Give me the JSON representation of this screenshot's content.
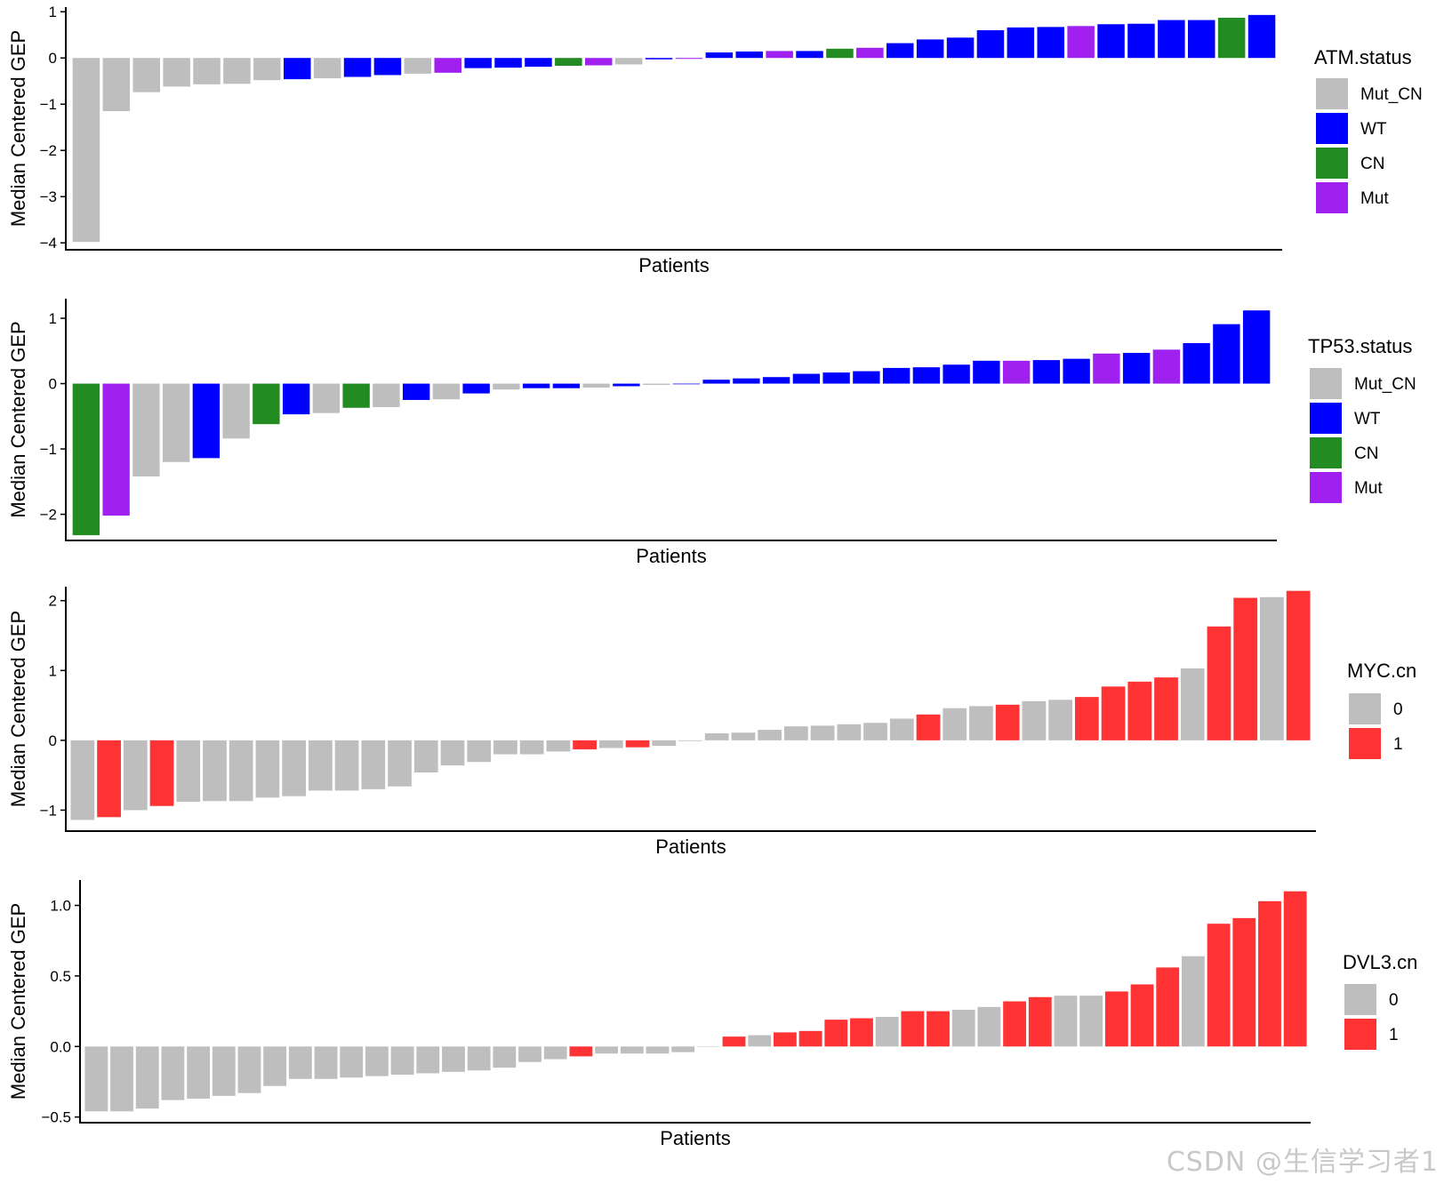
{
  "watermark": "CSDN @生信学习者1",
  "chart_data": [
    {
      "type": "bar",
      "title": "",
      "xlabel": "Patients",
      "ylabel": "Median Centered GEP",
      "ylim": [
        -4.15,
        1.1
      ],
      "yticks": [
        1,
        0,
        -1,
        -2,
        -3,
        -4
      ],
      "ytick_labels": [
        "1",
        "0",
        "−1",
        "−2",
        "−3",
        "−4"
      ],
      "legend_title": "ATM.status",
      "legend_categories": [
        "Mut_CN",
        "WT",
        "CN",
        "Mut"
      ],
      "colors": {
        "Mut_CN": "#bebebe",
        "WT": "#0000ff",
        "CN": "#228b22",
        "Mut": "#a020f0"
      },
      "values": [
        -3.98,
        -1.15,
        -0.74,
        -0.62,
        -0.57,
        -0.56,
        -0.48,
        -0.46,
        -0.44,
        -0.41,
        -0.37,
        -0.34,
        -0.32,
        -0.22,
        -0.21,
        -0.19,
        -0.17,
        -0.16,
        -0.14,
        -0.03,
        -0.02,
        0.12,
        0.14,
        0.15,
        0.15,
        0.2,
        0.22,
        0.32,
        0.4,
        0.44,
        0.6,
        0.66,
        0.67,
        0.69,
        0.73,
        0.74,
        0.82,
        0.82,
        0.87,
        0.93
      ],
      "groups": [
        "Mut_CN",
        "Mut_CN",
        "Mut_CN",
        "Mut_CN",
        "Mut_CN",
        "Mut_CN",
        "Mut_CN",
        "WT",
        "Mut_CN",
        "WT",
        "WT",
        "Mut_CN",
        "Mut",
        "WT",
        "WT",
        "WT",
        "CN",
        "Mut",
        "Mut_CN",
        "WT",
        "Mut",
        "WT",
        "WT",
        "Mut",
        "WT",
        "CN",
        "Mut",
        "WT",
        "WT",
        "WT",
        "WT",
        "WT",
        "WT",
        "Mut",
        "WT",
        "WT",
        "WT",
        "WT",
        "CN",
        "WT"
      ]
    },
    {
      "type": "bar",
      "title": "",
      "xlabel": "Patients",
      "ylabel": "Median Centered GEP",
      "ylim": [
        -2.4,
        1.3
      ],
      "yticks": [
        1,
        0,
        -1,
        -2
      ],
      "ytick_labels": [
        "1",
        "0",
        "−1",
        "−2"
      ],
      "legend_title": "TP53.status",
      "legend_categories": [
        "Mut_CN",
        "WT",
        "CN",
        "Mut"
      ],
      "colors": {
        "Mut_CN": "#bebebe",
        "WT": "#0000ff",
        "CN": "#228b22",
        "Mut": "#a020f0"
      },
      "values": [
        -2.32,
        -2.02,
        -1.42,
        -1.2,
        -1.14,
        -0.84,
        -0.62,
        -0.47,
        -0.45,
        -0.37,
        -0.36,
        -0.25,
        -0.24,
        -0.15,
        -0.09,
        -0.07,
        -0.07,
        -0.06,
        -0.04,
        -0.02,
        -0.01,
        0.06,
        0.08,
        0.1,
        0.15,
        0.17,
        0.19,
        0.24,
        0.25,
        0.29,
        0.35,
        0.35,
        0.36,
        0.38,
        0.46,
        0.47,
        0.52,
        0.62,
        0.91,
        1.12
      ],
      "groups": [
        "CN",
        "Mut",
        "Mut_CN",
        "Mut_CN",
        "WT",
        "Mut_CN",
        "CN",
        "WT",
        "Mut_CN",
        "CN",
        "Mut_CN",
        "WT",
        "Mut_CN",
        "WT",
        "Mut_CN",
        "WT",
        "WT",
        "Mut_CN",
        "WT",
        "Mut_CN",
        "WT",
        "WT",
        "WT",
        "WT",
        "WT",
        "WT",
        "WT",
        "WT",
        "WT",
        "WT",
        "WT",
        "Mut",
        "WT",
        "WT",
        "Mut",
        "WT",
        "Mut",
        "WT",
        "WT",
        "WT"
      ]
    },
    {
      "type": "bar",
      "title": "",
      "xlabel": "Patients",
      "ylabel": "Median Centered GEP",
      "ylim": [
        -1.3,
        2.2
      ],
      "yticks": [
        2,
        1,
        0,
        -1
      ],
      "ytick_labels": [
        "2",
        "1",
        "0",
        "−1"
      ],
      "legend_title": "MYC.cn",
      "legend_categories": [
        "0",
        "1"
      ],
      "colors": {
        "0": "#bebebe",
        "1": "#ff3333"
      },
      "values": [
        -1.14,
        -1.1,
        -1.0,
        -0.94,
        -0.88,
        -0.87,
        -0.87,
        -0.82,
        -0.8,
        -0.72,
        -0.72,
        -0.7,
        -0.66,
        -0.46,
        -0.36,
        -0.31,
        -0.2,
        -0.2,
        -0.16,
        -0.13,
        -0.11,
        -0.1,
        -0.08,
        -0.01,
        0.1,
        0.11,
        0.15,
        0.2,
        0.21,
        0.23,
        0.25,
        0.31,
        0.37,
        0.46,
        0.49,
        0.51,
        0.56,
        0.58,
        0.62,
        0.77,
        0.84,
        0.9,
        1.03,
        1.63,
        2.04,
        2.05,
        2.14
      ],
      "groups": [
        "0",
        "1",
        "0",
        "1",
        "0",
        "0",
        "0",
        "0",
        "0",
        "0",
        "0",
        "0",
        "0",
        "0",
        "0",
        "0",
        "0",
        "0",
        "0",
        "1",
        "0",
        "1",
        "0",
        "0",
        "0",
        "0",
        "0",
        "0",
        "0",
        "0",
        "0",
        "0",
        "1",
        "0",
        "0",
        "1",
        "0",
        "0",
        "1",
        "1",
        "1",
        "1",
        "0",
        "1",
        "1",
        "0",
        "1"
      ]
    },
    {
      "type": "bar",
      "title": "",
      "xlabel": "Patients",
      "ylabel": "Median Centered GEP",
      "ylim": [
        -0.54,
        1.18
      ],
      "yticks": [
        1.0,
        0.5,
        0.0,
        -0.5
      ],
      "ytick_labels": [
        "1.0",
        "0.5",
        "0.0",
        "−0.5"
      ],
      "legend_title": "DVL3.cn",
      "legend_categories": [
        "0",
        "1"
      ],
      "colors": {
        "0": "#bebebe",
        "1": "#ff3333"
      },
      "values": [
        -0.46,
        -0.46,
        -0.44,
        -0.38,
        -0.37,
        -0.35,
        -0.33,
        -0.28,
        -0.23,
        -0.23,
        -0.22,
        -0.21,
        -0.2,
        -0.19,
        -0.18,
        -0.17,
        -0.15,
        -0.11,
        -0.09,
        -0.07,
        -0.05,
        -0.05,
        -0.05,
        -0.04,
        0.0,
        0.07,
        0.08,
        0.1,
        0.11,
        0.19,
        0.2,
        0.21,
        0.25,
        0.25,
        0.26,
        0.28,
        0.32,
        0.35,
        0.36,
        0.36,
        0.39,
        0.44,
        0.56,
        0.64,
        0.87,
        0.91,
        1.03,
        1.1
      ],
      "groups": [
        "0",
        "0",
        "0",
        "0",
        "0",
        "0",
        "0",
        "0",
        "0",
        "0",
        "0",
        "0",
        "0",
        "0",
        "0",
        "0",
        "0",
        "0",
        "0",
        "1",
        "0",
        "0",
        "0",
        "0",
        "0",
        "1",
        "0",
        "1",
        "1",
        "1",
        "1",
        "0",
        "1",
        "1",
        "0",
        "0",
        "1",
        "1",
        "0",
        "0",
        "1",
        "1",
        "1",
        "0",
        "1",
        "1",
        "1",
        "1"
      ]
    }
  ]
}
